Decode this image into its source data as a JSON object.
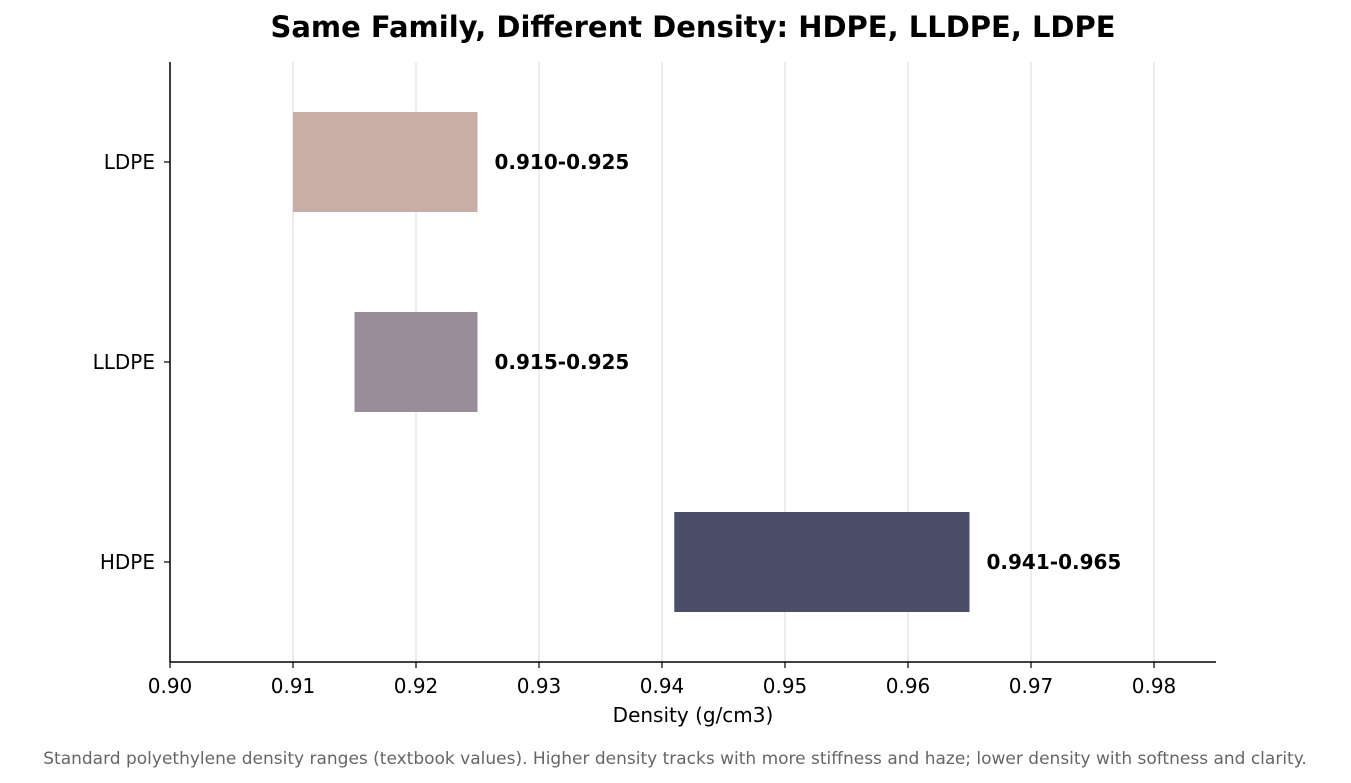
{
  "chart_data": {
    "type": "bar",
    "orientation": "horizontal",
    "title": "Same Family, Different Density: HDPE, LLDPE, LDPE",
    "xlabel": "Density (g/cm3)",
    "ylabel": "",
    "xlim": [
      0.9,
      0.985
    ],
    "xticks": [
      0.9,
      0.91,
      0.92,
      0.93,
      0.94,
      0.95,
      0.96,
      0.97,
      0.98
    ],
    "xtick_labels": [
      "0.90",
      "0.91",
      "0.92",
      "0.93",
      "0.94",
      "0.95",
      "0.96",
      "0.97",
      "0.98"
    ],
    "grid": "vertical",
    "categories": [
      "HDPE",
      "LLDPE",
      "LDPE"
    ],
    "ranges": [
      {
        "category": "HDPE",
        "start": 0.941,
        "end": 0.965,
        "label": "0.941-0.965",
        "color": "#4a4e69"
      },
      {
        "category": "LLDPE",
        "start": 0.915,
        "end": 0.925,
        "label": "0.915-0.925",
        "color": "#9a8c98"
      },
      {
        "category": "LDPE",
        "start": 0.91,
        "end": 0.925,
        "label": "0.910-0.925",
        "color": "#c9ada7"
      }
    ],
    "caption": "Standard polyethylene density ranges (textbook values). Higher density tracks with more stiffness and haze; lower density with softness and clarity."
  },
  "colors": {
    "axis": "#000000",
    "grid": "#e0e0e0",
    "caption": "#666666"
  }
}
